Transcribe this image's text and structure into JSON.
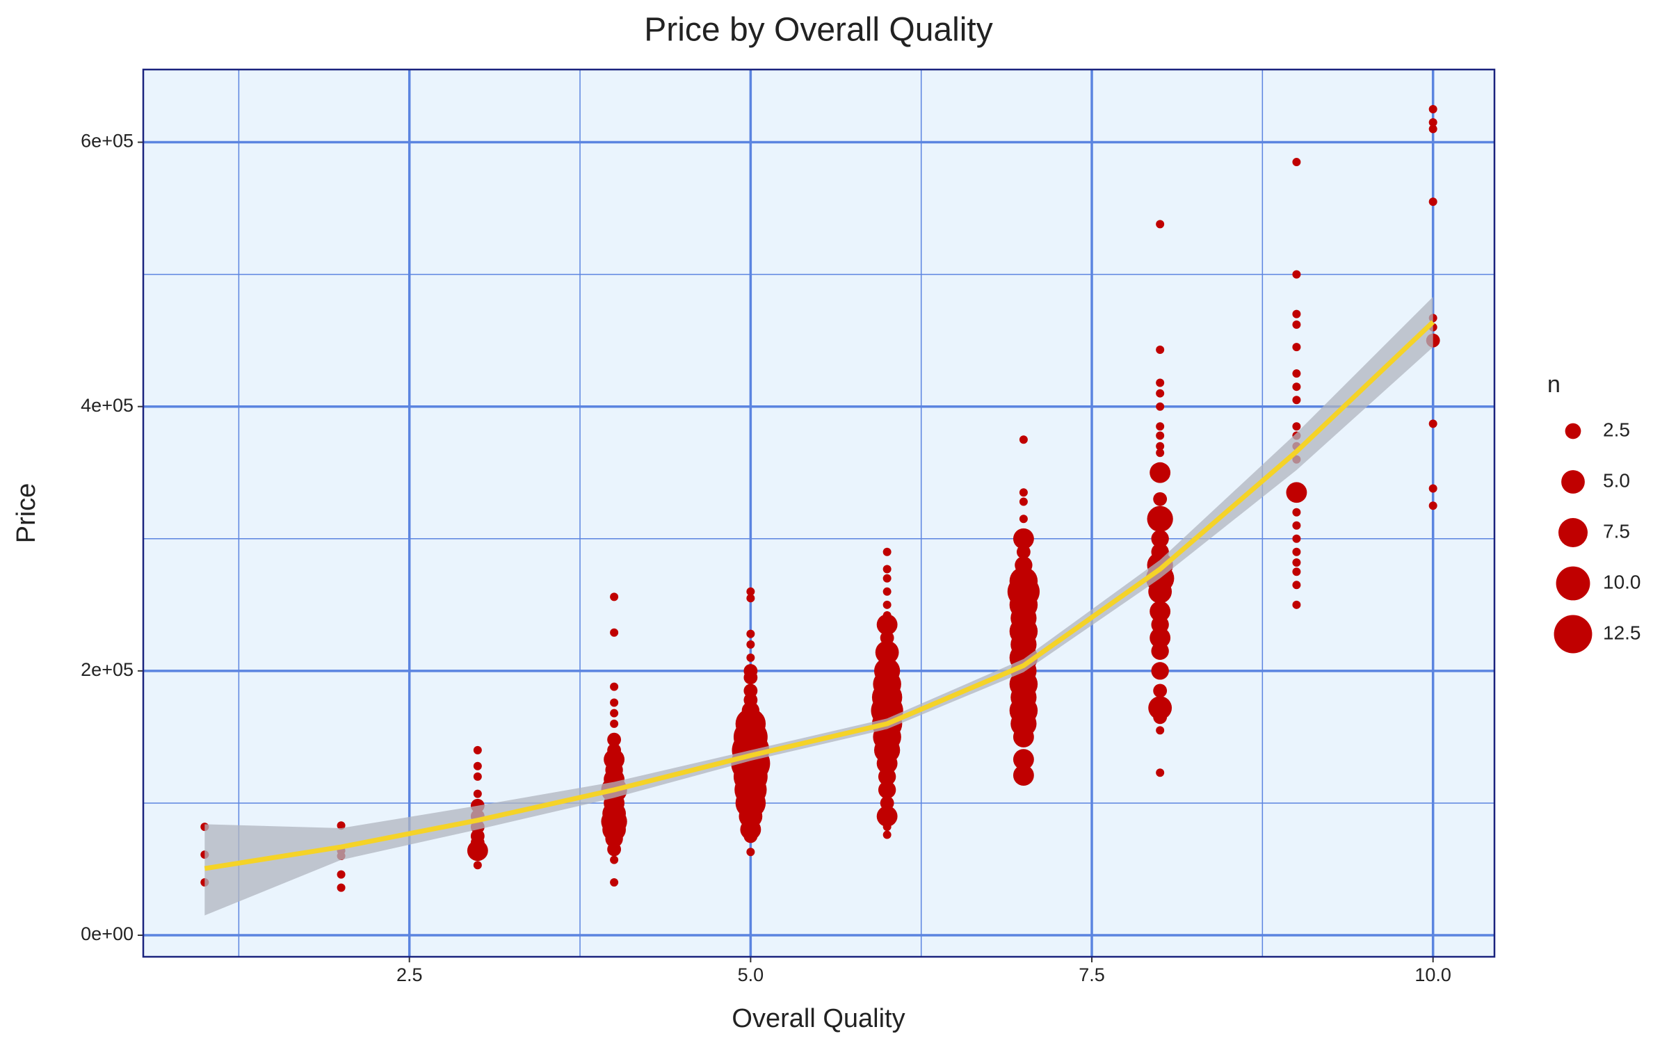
{
  "chart_data": {
    "type": "scatter",
    "title": "Price by Overall Quality",
    "x_label": "Overall Quality",
    "y_label": "Price",
    "xlim": [
      0.55,
      10.45
    ],
    "ylim": [
      -16300,
      655000
    ],
    "xticks": [
      2.5,
      {
        "value": 5,
        "label": "5.0"
      },
      7.5,
      {
        "value": 10,
        "label": "10.0"
      }
    ],
    "x_minor_ticks": [
      1.25,
      3.75,
      6.25,
      8.75
    ],
    "yticks": [
      {
        "value": 0,
        "label": "0e+00"
      },
      {
        "value": 200000,
        "label": "2e+05"
      },
      {
        "value": 400000,
        "label": "4e+05"
      },
      {
        "value": 600000,
        "label": "6e+05"
      }
    ],
    "y_minor_ticks": [
      100000,
      300000,
      500000
    ],
    "grid": true,
    "color": "#c00000",
    "panel_color": "#eaf4fd",
    "grid_color": "#5b84e0",
    "size_legend": {
      "title": "n",
      "sizelim": [
        1,
        13
      ],
      "entries": [
        2.5,
        {
          "value": 5,
          "label": "5.0"
        },
        7.5,
        {
          "value": 10,
          "label": "10.0"
        },
        12.5
      ]
    },
    "groups": [
      {
        "x": 1,
        "values": [
          82000,
          61000,
          40000
        ],
        "sizes": [
          1,
          1,
          1
        ]
      },
      {
        "x": 2,
        "values": [
          83000,
          64000,
          60000,
          46000,
          36000
        ],
        "sizes": [
          1,
          1,
          1,
          1,
          1
        ]
      },
      {
        "x": 3,
        "values": [
          140000,
          128000,
          120000,
          107000,
          98000,
          90000,
          82000,
          75000,
          70000,
          64000,
          53000
        ],
        "sizes": [
          1,
          1,
          1,
          1,
          2,
          2,
          2,
          2,
          2,
          4,
          1
        ]
      },
      {
        "x": 4,
        "values": [
          256000,
          229000,
          188000,
          176000,
          168000,
          160000,
          148000,
          140000,
          133000,
          125000,
          118000,
          110000,
          100000,
          92000,
          86000,
          80000,
          73000,
          65000,
          57000,
          40000
        ],
        "sizes": [
          1,
          1,
          1,
          1,
          1,
          1,
          2,
          2,
          4,
          3,
          4,
          6,
          4,
          5,
          6,
          5,
          3,
          2,
          1,
          1
        ]
      },
      {
        "x": 5,
        "values": [
          260000,
          255000,
          228000,
          220000,
          210000,
          200000,
          195000,
          185000,
          178000,
          170000,
          160000,
          150000,
          140000,
          130000,
          120000,
          110000,
          100000,
          90000,
          80000,
          75000,
          63000
        ],
        "sizes": [
          1,
          1,
          1,
          1,
          1,
          2,
          2,
          2,
          2,
          3,
          8,
          10,
          12,
          13,
          10,
          9,
          8,
          5,
          4,
          2,
          1
        ]
      },
      {
        "x": 6,
        "values": [
          290000,
          277000,
          270000,
          260000,
          250000,
          242000,
          235000,
          225000,
          214000,
          200000,
          190000,
          180000,
          170000,
          160000,
          150000,
          140000,
          130000,
          120000,
          110000,
          100000,
          90000,
          82000,
          76000
        ],
        "sizes": [
          1,
          1,
          1,
          1,
          1,
          1,
          4,
          2,
          5,
          6,
          7,
          8,
          9,
          8,
          7,
          6,
          4,
          3,
          3,
          2,
          4,
          1,
          1
        ]
      },
      {
        "x": 7,
        "values": [
          375000,
          335000,
          328000,
          315000,
          300000,
          290000,
          280000,
          268000,
          260000,
          250000,
          240000,
          230000,
          220000,
          210000,
          200000,
          190000,
          180000,
          170000,
          160000,
          150000,
          133000,
          121000
        ],
        "sizes": [
          1,
          1,
          1,
          1,
          4,
          2,
          3,
          7,
          9,
          7,
          6,
          7,
          6,
          7,
          6,
          7,
          6,
          7,
          6,
          4,
          4,
          4
        ]
      },
      {
        "x": 8,
        "values": [
          538000,
          443000,
          418000,
          410000,
          400000,
          385000,
          378000,
          370000,
          365000,
          350000,
          330000,
          315000,
          300000,
          290000,
          280000,
          270000,
          260000,
          245000,
          235000,
          225000,
          215000,
          200000,
          185000,
          172000,
          165000,
          155000,
          123000
        ],
        "sizes": [
          1,
          1,
          1,
          1,
          1,
          1,
          1,
          1,
          1,
          4,
          2,
          6,
          3,
          3,
          6,
          7,
          5,
          4,
          3,
          4,
          3,
          3,
          2,
          5,
          2,
          1,
          1
        ]
      },
      {
        "x": 9,
        "values": [
          585000,
          500000,
          470000,
          462000,
          445000,
          425000,
          415000,
          405000,
          385000,
          378000,
          370000,
          360000,
          335000,
          320000,
          310000,
          300000,
          290000,
          282000,
          275000,
          265000,
          250000
        ],
        "sizes": [
          1,
          1,
          1,
          1,
          1,
          1,
          1,
          1,
          1,
          1,
          1,
          1,
          4,
          1,
          1,
          1,
          1,
          1,
          1,
          1,
          1
        ]
      },
      {
        "x": 10,
        "values": [
          625000,
          615000,
          610000,
          555000,
          467000,
          460000,
          452000,
          450000,
          387000,
          338000,
          325000
        ],
        "sizes": [
          1,
          1,
          1,
          1,
          1,
          1,
          1,
          2,
          1,
          1,
          1
        ]
      }
    ],
    "smooth": {
      "color": "#f5d327",
      "band_color": "#b0b6bf",
      "x": [
        1,
        2,
        3,
        4,
        5,
        6,
        7,
        8,
        9,
        10
      ],
      "values": [
        50500,
        66800,
        87000,
        110000,
        136000,
        160000,
        204000,
        277000,
        366000,
        464000
      ],
      "lower": [
        15000,
        57000,
        80000,
        104000,
        132000,
        156000,
        199000,
        270000,
        352000,
        445000
      ],
      "upper": [
        84000,
        81000,
        98000,
        116000,
        140000,
        164000,
        209000,
        284000,
        380000,
        483000
      ]
    }
  }
}
